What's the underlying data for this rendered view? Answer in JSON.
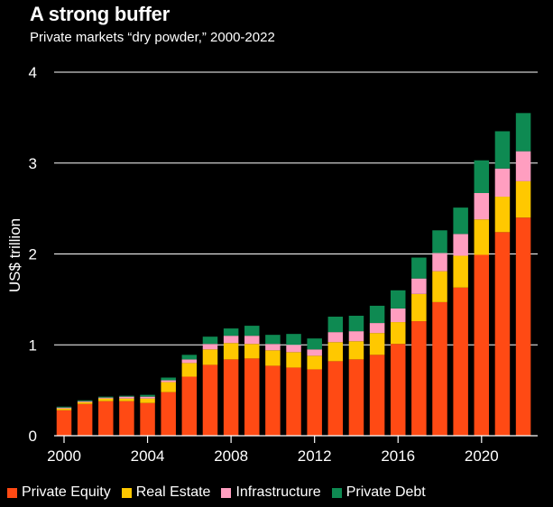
{
  "chart_data": {
    "type": "bar",
    "stacked": true,
    "title": "A strong buffer",
    "subtitle": "Private markets “dry powder,” 2000-2022",
    "ylabel": "US$ trillion",
    "xlabel": "",
    "ylim": [
      0,
      4
    ],
    "yticks": [
      0,
      1,
      2,
      3,
      4
    ],
    "xticks": [
      2000,
      2004,
      2008,
      2012,
      2016,
      2020
    ],
    "grid": true,
    "legend_position": "bottom",
    "categories": [
      2000,
      2001,
      2002,
      2003,
      2004,
      2005,
      2006,
      2007,
      2008,
      2009,
      2010,
      2011,
      2012,
      2013,
      2014,
      2015,
      2016,
      2017,
      2018,
      2019,
      2020,
      2021,
      2022
    ],
    "series": [
      {
        "name": "Private Equity",
        "color": "#ff4a14",
        "values": [
          0.28,
          0.35,
          0.38,
          0.38,
          0.36,
          0.48,
          0.65,
          0.78,
          0.84,
          0.85,
          0.77,
          0.75,
          0.73,
          0.82,
          0.84,
          0.89,
          1.01,
          1.26,
          1.47,
          1.63,
          1.99,
          2.24,
          2.4
        ]
      },
      {
        "name": "Real Estate",
        "color": "#ffc800",
        "values": [
          0.02,
          0.02,
          0.03,
          0.03,
          0.05,
          0.11,
          0.15,
          0.17,
          0.18,
          0.16,
          0.17,
          0.17,
          0.15,
          0.21,
          0.2,
          0.24,
          0.24,
          0.3,
          0.34,
          0.35,
          0.39,
          0.39,
          0.4
        ]
      },
      {
        "name": "Infrastructure",
        "color": "#ff9ec0",
        "values": [
          0.01,
          0.01,
          0.01,
          0.02,
          0.02,
          0.02,
          0.04,
          0.06,
          0.08,
          0.09,
          0.07,
          0.08,
          0.07,
          0.11,
          0.11,
          0.11,
          0.15,
          0.17,
          0.2,
          0.24,
          0.29,
          0.31,
          0.33
        ]
      },
      {
        "name": "Private Debt",
        "color": "#0e8a52",
        "values": [
          0.01,
          0.01,
          0.01,
          0.01,
          0.02,
          0.03,
          0.05,
          0.08,
          0.08,
          0.11,
          0.1,
          0.12,
          0.12,
          0.17,
          0.17,
          0.19,
          0.2,
          0.23,
          0.25,
          0.29,
          0.36,
          0.41,
          0.42
        ]
      }
    ]
  }
}
